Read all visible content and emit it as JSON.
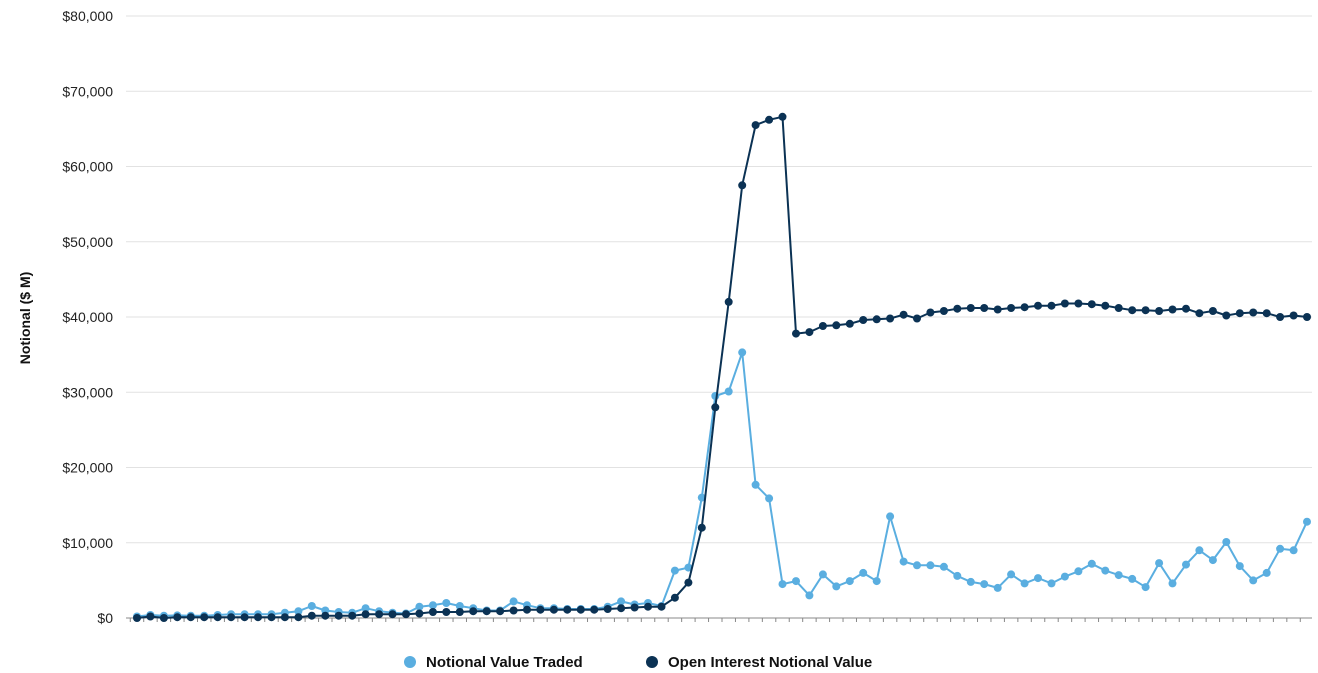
{
  "chart_data": {
    "type": "line",
    "title": "",
    "xlabel": "",
    "ylabel": "Notional ($ M)",
    "ylim": [
      0,
      80000
    ],
    "yticks": [
      {
        "value": 0,
        "label": "$0"
      },
      {
        "value": 10000,
        "label": "$10,000"
      },
      {
        "value": 20000,
        "label": "$20,000"
      },
      {
        "value": 30000,
        "label": "$30,000"
      },
      {
        "value": 40000,
        "label": "$40,000"
      },
      {
        "value": 50000,
        "label": "$50,000"
      },
      {
        "value": 60000,
        "label": "$60,000"
      },
      {
        "value": 70000,
        "label": "$70,000"
      },
      {
        "value": 80000,
        "label": "$80,000"
      }
    ],
    "grid": true,
    "legend_position": "bottom",
    "series": [
      {
        "name": "Notional Value Traded",
        "color": "#5aaee0",
        "values": [
          200,
          400,
          300,
          350,
          300,
          300,
          400,
          500,
          500,
          500,
          500,
          700,
          900,
          1600,
          1000,
          800,
          700,
          1300,
          900,
          700,
          600,
          1500,
          1700,
          2000,
          1600,
          1300,
          1000,
          1000,
          2200,
          1700,
          1300,
          1300,
          1200,
          1200,
          1200,
          1500,
          2200,
          1800,
          2000,
          1600,
          6300,
          6700,
          16000,
          29500,
          30100,
          35300,
          17700,
          15900,
          4500,
          4900,
          3000,
          5800,
          4200,
          4900,
          6000,
          4900,
          13500,
          7500,
          7000,
          7000,
          6800,
          5600,
          4800,
          4500,
          4000,
          5800,
          4600,
          5300,
          4600,
          5500,
          6200,
          7200,
          6300,
          5700,
          5200,
          4100,
          7300,
          4600,
          7100,
          9000,
          7700,
          10100,
          6900,
          5000,
          6000,
          9200,
          9000,
          12800
        ]
      },
      {
        "name": "Open Interest Notional Value",
        "color": "#0b3254",
        "values": [
          0,
          200,
          0,
          100,
          100,
          100,
          100,
          100,
          100,
          100,
          100,
          100,
          100,
          300,
          300,
          300,
          300,
          500,
          500,
          500,
          500,
          600,
          800,
          800,
          800,
          900,
          900,
          900,
          1000,
          1100,
          1100,
          1100,
          1100,
          1100,
          1100,
          1200,
          1300,
          1400,
          1500,
          1500,
          2700,
          4700,
          12000,
          28000,
          42000,
          57500,
          65500,
          66200,
          66600,
          37800,
          38000,
          38800,
          38900,
          39100,
          39600,
          39700,
          39800,
          40300,
          39800,
          40600,
          40800,
          41100,
          41200,
          41200,
          41000,
          41200,
          41300,
          41500,
          41500,
          41800,
          41800,
          41700,
          41500,
          41200,
          40900,
          40900,
          40800,
          41000,
          41100,
          40500,
          40800,
          40200,
          40500,
          40600,
          40500,
          40000,
          40200,
          40000
        ]
      }
    ]
  }
}
